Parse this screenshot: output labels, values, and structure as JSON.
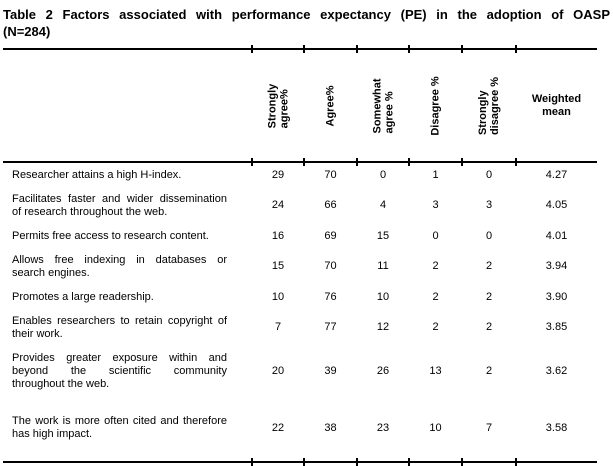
{
  "caption": {
    "line1": "Table 2 Factors associated with performance expectancy (PE) in the adoption of OASP",
    "line2": "(N=284)"
  },
  "table": {
    "columns": [
      {
        "label": "Strongly\nagree%"
      },
      {
        "label": "Agree%"
      },
      {
        "label": "Somewhat\nagree %"
      },
      {
        "label": "Disagree %"
      },
      {
        "label": "Strongly\ndisagree %"
      },
      {
        "label": "Weighted\nmean"
      }
    ],
    "rows": [
      {
        "factor_lines": [
          "Researcher attains a high H-index."
        ],
        "values": [
          "29",
          "70",
          "0",
          "1",
          "0",
          "4.27"
        ]
      },
      {
        "factor_lines": [
          "Facilitates faster and wider dissemination",
          "of research throughout the web."
        ],
        "values": [
          "24",
          "66",
          "4",
          "3",
          "3",
          "4.05"
        ]
      },
      {
        "factor_lines": [
          "Permits free access to research content."
        ],
        "values": [
          "16",
          "69",
          "15",
          "0",
          "0",
          "4.01"
        ]
      },
      {
        "factor_lines": [
          "Allows free indexing in databases or",
          "search engines."
        ],
        "values": [
          "15",
          "70",
          "11",
          "2",
          "2",
          "3.94"
        ]
      },
      {
        "factor_lines": [
          "Promotes a large readership."
        ],
        "values": [
          "10",
          "76",
          "10",
          "2",
          "2",
          "3.90"
        ]
      },
      {
        "factor_lines": [
          "Enables researchers to retain copyright of",
          "their work."
        ],
        "values": [
          "7",
          "77",
          "12",
          "2",
          "2",
          "3.85"
        ]
      },
      {
        "factor_lines": [
          "Provides greater exposure within and",
          "beyond the scientific community",
          "throughout the web."
        ],
        "values": [
          "20",
          "39",
          "26",
          "13",
          "2",
          "3.62"
        ]
      },
      {
        "factor_lines": [
          "The work is more often cited and therefore",
          "has high impact."
        ],
        "values": [
          "22",
          "38",
          "23",
          "10",
          "7",
          "3.58"
        ]
      }
    ]
  }
}
